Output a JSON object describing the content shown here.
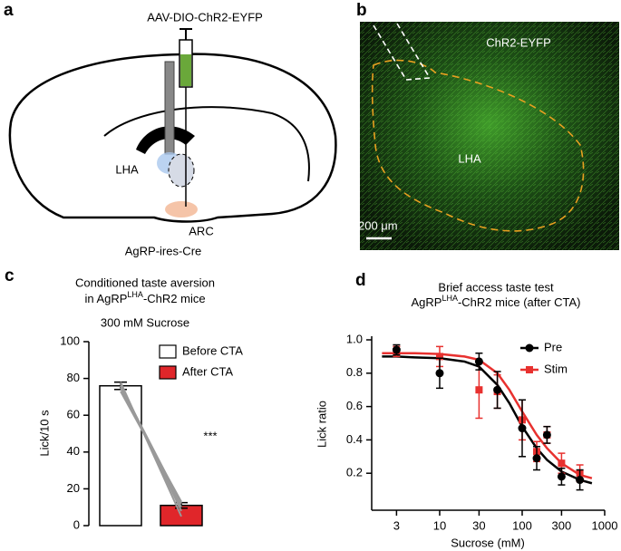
{
  "panel_a": {
    "letter": "a",
    "syringe_label": "AAV-DIO-ChR2-EYFP",
    "region_label": "LHA",
    "nucleus_label": "ARC",
    "mouse_label": "AgRP-ires-Cre"
  },
  "panel_b": {
    "letter": "b",
    "stain_label": "ChR2-EYFP",
    "region_label": "LHA",
    "scale_label": "200 μm"
  },
  "chart_data": [
    {
      "type": "bar",
      "panel": "c",
      "title": "Conditioned taste aversion",
      "subtitle_parts": [
        "in AgRP",
        "LHA",
        "-ChR2 mice"
      ],
      "note": "300 mM Sucrose",
      "ylabel": "Lick/10 s",
      "ylim": [
        0,
        100
      ],
      "yticks": [
        0,
        20,
        40,
        60,
        80,
        100
      ],
      "annotation": "***",
      "series": [
        {
          "name": "Before CTA",
          "color": "#ffffff",
          "values": [
            76
          ],
          "errors": [
            2
          ]
        },
        {
          "name": "After CTA",
          "color": "#e0262a",
          "values": [
            11
          ],
          "errors": [
            1.5
          ]
        }
      ],
      "pairs": [
        [
          78,
          5
        ],
        [
          77,
          8
        ],
        [
          76,
          12
        ],
        [
          75,
          10
        ],
        [
          73,
          13
        ]
      ],
      "pair_color": "#999999"
    },
    {
      "type": "line",
      "panel": "d",
      "title": "Brief access taste test",
      "subtitle_parts": [
        "AgRP",
        "LHA",
        "-ChR2 mice (after CTA)"
      ],
      "xlabel": "Sucrose (mM)",
      "ylabel": "Lick ratio",
      "xscale": "log",
      "xlim": [
        1.5,
        1000
      ],
      "xticks": [
        3,
        10,
        30,
        100,
        300,
        1000
      ],
      "ylim": [
        0,
        1
      ],
      "yticks": [
        0.2,
        0.4,
        0.6,
        0.8,
        {
          "value": 1,
          "label": "1.0"
        }
      ],
      "legend": "upper right",
      "x": [
        3,
        10,
        30,
        50,
        100,
        150,
        200,
        300,
        500
      ],
      "series": [
        {
          "name": "Pre",
          "color": "#000000",
          "marker": "circle",
          "values": [
            0.94,
            0.8,
            0.87,
            0.7,
            0.47,
            0.29,
            0.43,
            0.18,
            0.16
          ],
          "errors": [
            0.03,
            0.09,
            0.05,
            0.11,
            0.17,
            0.07,
            0.05,
            0.05,
            0.06
          ]
        },
        {
          "name": "Stim",
          "color": "#e8312f",
          "marker": "square",
          "values": [
            0.93,
            0.9,
            0.7,
            0.69,
            0.52,
            0.33,
            0.43,
            0.26,
            0.2
          ],
          "errors": [
            0.03,
            0.06,
            0.17,
            0.1,
            0.12,
            0.06,
            0.05,
            0.06,
            0.05
          ]
        }
      ],
      "curves": [
        {
          "color": "#000000",
          "x": [
            2,
            3,
            5,
            10,
            20,
            30,
            50,
            70,
            100,
            150,
            200,
            300,
            500,
            700
          ],
          "values": [
            0.9,
            0.9,
            0.895,
            0.89,
            0.87,
            0.84,
            0.73,
            0.62,
            0.48,
            0.35,
            0.28,
            0.21,
            0.16,
            0.14
          ]
        },
        {
          "color": "#e8312f",
          "x": [
            2,
            3,
            5,
            10,
            20,
            30,
            50,
            70,
            100,
            150,
            200,
            300,
            500,
            700
          ],
          "values": [
            0.92,
            0.92,
            0.92,
            0.915,
            0.9,
            0.88,
            0.8,
            0.7,
            0.57,
            0.43,
            0.35,
            0.26,
            0.19,
            0.17
          ]
        }
      ]
    }
  ]
}
